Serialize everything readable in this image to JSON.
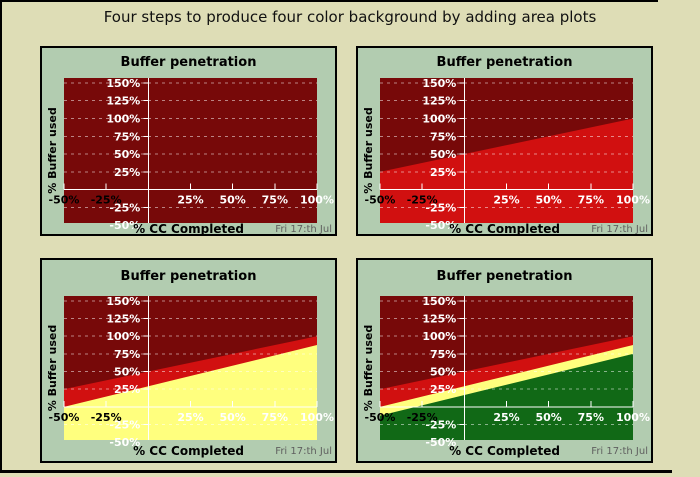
{
  "header": {
    "title": "Four steps to produce four color background by adding area plots"
  },
  "colors": {
    "canvas": "#DEDDB6",
    "panel": "#B2CCB0",
    "frame": "#000000",
    "axis": "#FFFFFF",
    "grid": "#FFFFFF",
    "grid_opacity": 0.5,
    "ytick_label": "#FFFFFF",
    "footer_text": "#5F5F5F",
    "darkred": "#770909",
    "red": "#D11010",
    "yellow": "#FFFF7E",
    "green": "#116916"
  },
  "chart_data": [
    {
      "type": "area",
      "title": "Buffer penetration",
      "xlabel": "% CC Completed",
      "ylabel": "% Buffer used",
      "footer": "Fri 17:th Jul",
      "xlim": [
        -50,
        100
      ],
      "ylim": [
        -50,
        150
      ],
      "xticks": [
        -50,
        -25,
        25,
        50,
        75,
        100
      ],
      "yticks": [
        150,
        125,
        100,
        75,
        50,
        25,
        -25,
        -50
      ],
      "xtick_label_colors": [
        "#000000",
        "#000000",
        "#FFFFFF",
        "#FFFFFF",
        "#FFFFFF",
        "#FFFFFF"
      ],
      "grid": "horizontal-dashed",
      "legend": "none",
      "background_color": "#770909",
      "areas": []
    },
    {
      "type": "area",
      "title": "Buffer penetration",
      "xlabel": "% CC Completed",
      "ylabel": "% Buffer used",
      "footer": "Fri 17:th Jul",
      "xlim": [
        -50,
        100
      ],
      "ylim": [
        -50,
        150
      ],
      "xticks": [
        -50,
        -25,
        25,
        50,
        75,
        100
      ],
      "yticks": [
        150,
        125,
        100,
        75,
        50,
        25,
        -25,
        -50
      ],
      "xtick_label_colors": [
        "#000000",
        "#000000",
        "#FFFFFF",
        "#FFFFFF",
        "#FFFFFF",
        "#FFFFFF"
      ],
      "grid": "horizontal-dashed",
      "legend": "none",
      "background_color": "#770909",
      "areas": [
        {
          "name": "red",
          "color": "#D11010",
          "line_x": [
            -50,
            100
          ],
          "line_y": [
            25,
            100
          ]
        }
      ]
    },
    {
      "type": "area",
      "title": "Buffer penetration",
      "xlabel": "% CC Completed",
      "ylabel": "% Buffer used",
      "footer": "Fri 17:th Jul",
      "xlim": [
        -50,
        100
      ],
      "ylim": [
        -50,
        150
      ],
      "xticks": [
        -50,
        -25,
        25,
        50,
        75,
        100
      ],
      "yticks": [
        150,
        125,
        100,
        75,
        50,
        25,
        -25,
        -50
      ],
      "xtick_label_colors": [
        "#000000",
        "#000000",
        "#FFFFFF",
        "#FFFFFF",
        "#FFFFFF",
        "#FFFFFF"
      ],
      "grid": "horizontal-dashed",
      "legend": "none",
      "background_color": "#770909",
      "areas": [
        {
          "name": "red",
          "color": "#D11010",
          "line_x": [
            -50,
            100
          ],
          "line_y": [
            25,
            100
          ]
        },
        {
          "name": "yellow",
          "color": "#FFFF7E",
          "line_x": [
            -50,
            100
          ],
          "line_y": [
            0,
            87.5
          ]
        }
      ]
    },
    {
      "type": "area",
      "title": "Buffer penetration",
      "xlabel": "% CC Completed",
      "ylabel": "% Buffer used",
      "footer": "Fri 17:th Jul",
      "xlim": [
        -50,
        100
      ],
      "ylim": [
        -50,
        150
      ],
      "xticks": [
        -50,
        -25,
        25,
        50,
        75,
        100
      ],
      "yticks": [
        150,
        125,
        100,
        75,
        50,
        25,
        -25,
        -50
      ],
      "xtick_label_colors": [
        "#000000",
        "#000000",
        "#FFFFFF",
        "#FFFFFF",
        "#FFFFFF",
        "#FFFFFF"
      ],
      "grid": "horizontal-dashed",
      "legend": "none",
      "background_color": "#770909",
      "areas": [
        {
          "name": "red",
          "color": "#D11010",
          "line_x": [
            -50,
            100
          ],
          "line_y": [
            25,
            100
          ]
        },
        {
          "name": "yellow",
          "color": "#FFFF7E",
          "line_x": [
            -50,
            100
          ],
          "line_y": [
            0,
            87.5
          ]
        },
        {
          "name": "green",
          "color": "#116916",
          "line_x": [
            -50,
            100
          ],
          "line_y": [
            -12.5,
            75
          ]
        }
      ]
    }
  ]
}
